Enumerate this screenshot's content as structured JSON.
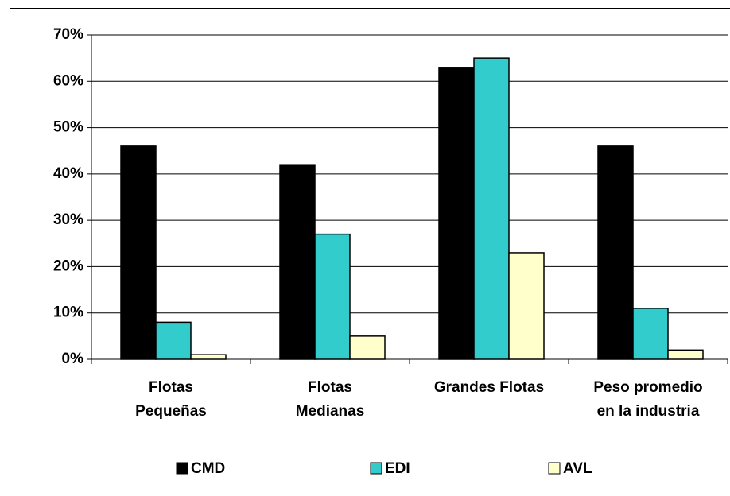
{
  "chart_data": {
    "type": "bar",
    "categories": [
      "Flotas\nPequeñas",
      "Flotas\nMedianas",
      "Grandes Flotas",
      "Peso promedio\nen la industria"
    ],
    "series": [
      {
        "name": "CMD",
        "color": "#000000",
        "values": [
          46,
          42,
          63,
          46
        ]
      },
      {
        "name": "EDI",
        "color": "#33cccc",
        "values": [
          8,
          27,
          65,
          11
        ]
      },
      {
        "name": "AVL",
        "color": "#ffffcc",
        "values": [
          1,
          5,
          23,
          2
        ]
      }
    ],
    "ylim": [
      0,
      70
    ],
    "yticks": [
      {
        "value": 0,
        "label": "0%"
      },
      {
        "value": 10,
        "label": "10%"
      },
      {
        "value": 20,
        "label": "20%"
      },
      {
        "value": 30,
        "label": "30%"
      },
      {
        "value": 40,
        "label": "40%"
      },
      {
        "value": 50,
        "label": "50%"
      },
      {
        "value": 60,
        "label": "60%"
      },
      {
        "value": 70,
        "label": "70%"
      }
    ],
    "grid": true,
    "legend": "bottom"
  }
}
